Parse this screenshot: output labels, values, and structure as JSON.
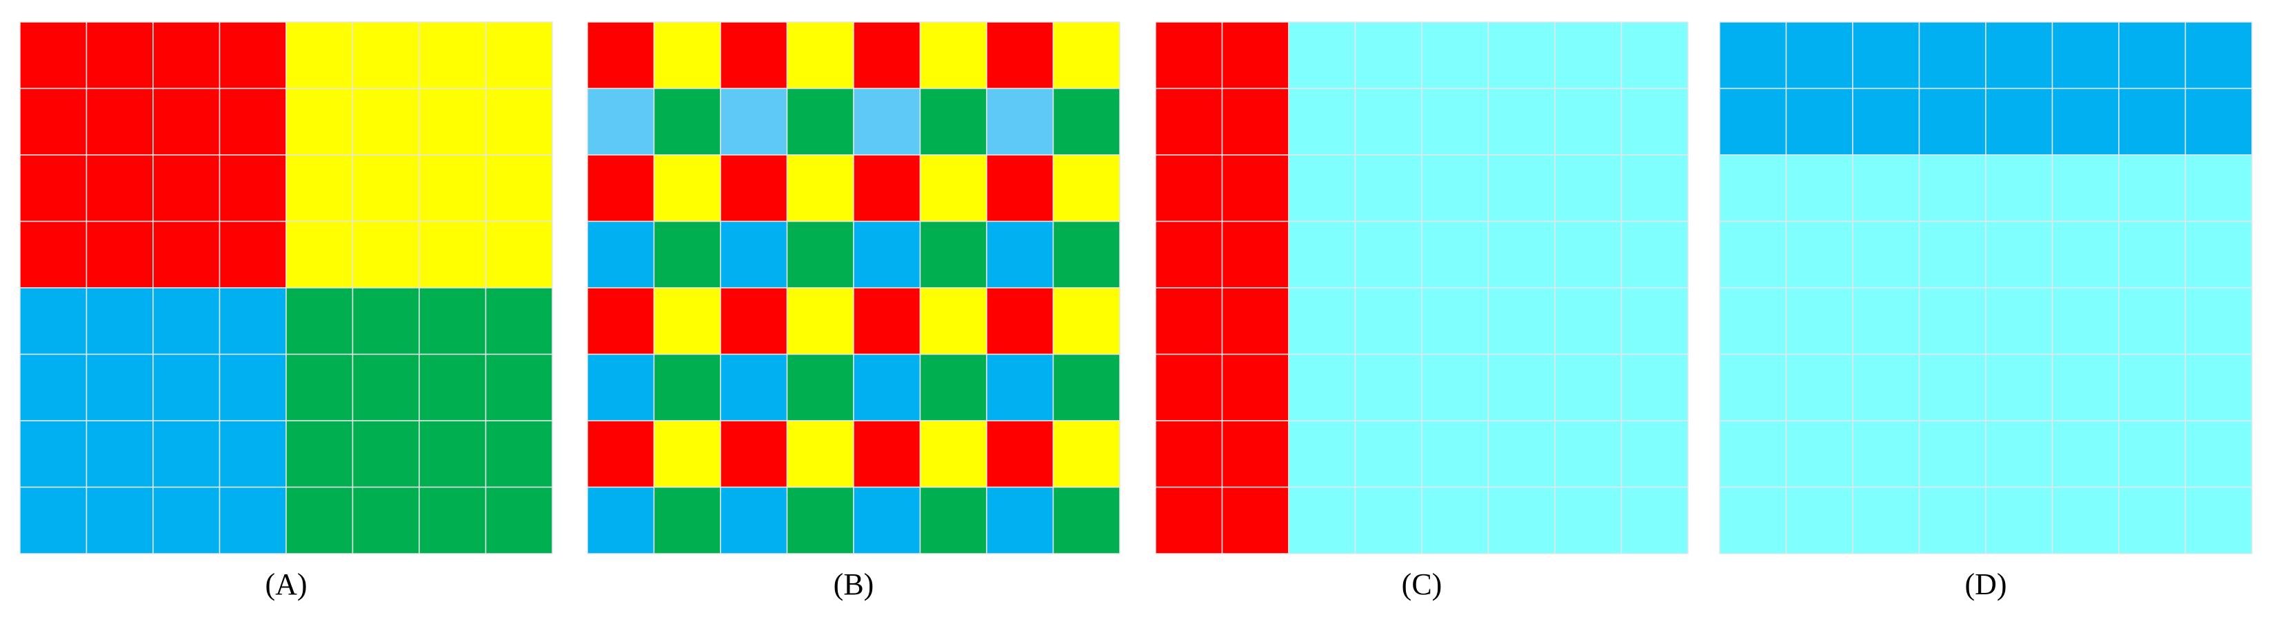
{
  "panels": [
    {
      "label": "(A)",
      "cells": [
        [
          "#ff0000",
          "#ff0000",
          "#ff0000",
          "#ff0000",
          "#ffff00",
          "#ffff00",
          "#ffff00",
          "#ffff00"
        ],
        [
          "#ff0000",
          "#ff0000",
          "#ff0000",
          "#ff0000",
          "#ffff00",
          "#ffff00",
          "#ffff00",
          "#ffff00"
        ],
        [
          "#ff0000",
          "#ff0000",
          "#ff0000",
          "#ff0000",
          "#ffff00",
          "#ffff00",
          "#ffff00",
          "#ffff00"
        ],
        [
          "#ff0000",
          "#ff0000",
          "#ff0000",
          "#ff0000",
          "#ffff00",
          "#ffff00",
          "#ffff00",
          "#ffff00"
        ],
        [
          "#00b0f0",
          "#00b0f0",
          "#00b0f0",
          "#00b0f0",
          "#00b050",
          "#00b050",
          "#00b050",
          "#00b050"
        ],
        [
          "#00b0f0",
          "#00b0f0",
          "#00b0f0",
          "#00b0f0",
          "#00b050",
          "#00b050",
          "#00b050",
          "#00b050"
        ],
        [
          "#00b0f0",
          "#00b0f0",
          "#00b0f0",
          "#00b0f0",
          "#00b050",
          "#00b050",
          "#00b050",
          "#00b050"
        ],
        [
          "#00b0f0",
          "#00b0f0",
          "#00b0f0",
          "#00b0f0",
          "#00b050",
          "#00b050",
          "#00b050",
          "#00b050"
        ]
      ]
    },
    {
      "label": "(B)",
      "cells": [
        [
          "#ff0000",
          "#ffff00",
          "#ff0000",
          "#ffff00",
          "#ff0000",
          "#ffff00",
          "#ff0000",
          "#ffff00"
        ],
        [
          "#5ec9f5",
          "#00b050",
          "#5ec9f5",
          "#00b050",
          "#5ec9f5",
          "#00b050",
          "#5ec9f5",
          "#00b050"
        ],
        [
          "#ff0000",
          "#ffff00",
          "#ff0000",
          "#ffff00",
          "#ff0000",
          "#ffff00",
          "#ff0000",
          "#ffff00"
        ],
        [
          "#00b0f0",
          "#00b050",
          "#00b0f0",
          "#00b050",
          "#00b0f0",
          "#00b050",
          "#00b0f0",
          "#00b050"
        ],
        [
          "#ff0000",
          "#ffff00",
          "#ff0000",
          "#ffff00",
          "#ff0000",
          "#ffff00",
          "#ff0000",
          "#ffff00"
        ],
        [
          "#00b0f0",
          "#00b050",
          "#00b0f0",
          "#00b050",
          "#00b0f0",
          "#00b050",
          "#00b0f0",
          "#00b050"
        ],
        [
          "#ff0000",
          "#ffff00",
          "#ff0000",
          "#ffff00",
          "#ff0000",
          "#ffff00",
          "#ff0000",
          "#ffff00"
        ],
        [
          "#00b0f0",
          "#00b050",
          "#00b0f0",
          "#00b050",
          "#00b0f0",
          "#00b050",
          "#00b0f0",
          "#00b050"
        ]
      ]
    },
    {
      "label": "(C)",
      "cells": [
        [
          "#ff0000",
          "#ff0000",
          "#80ffff",
          "#80ffff",
          "#80ffff",
          "#80ffff",
          "#80ffff",
          "#80ffff"
        ],
        [
          "#ff0000",
          "#ff0000",
          "#80ffff",
          "#80ffff",
          "#80ffff",
          "#80ffff",
          "#80ffff",
          "#80ffff"
        ],
        [
          "#ff0000",
          "#ff0000",
          "#80ffff",
          "#80ffff",
          "#80ffff",
          "#80ffff",
          "#80ffff",
          "#80ffff"
        ],
        [
          "#ff0000",
          "#ff0000",
          "#80ffff",
          "#80ffff",
          "#80ffff",
          "#80ffff",
          "#80ffff",
          "#80ffff"
        ],
        [
          "#ff0000",
          "#ff0000",
          "#80ffff",
          "#80ffff",
          "#80ffff",
          "#80ffff",
          "#80ffff",
          "#80ffff"
        ],
        [
          "#ff0000",
          "#ff0000",
          "#80ffff",
          "#80ffff",
          "#80ffff",
          "#80ffff",
          "#80ffff",
          "#80ffff"
        ],
        [
          "#ff0000",
          "#ff0000",
          "#80ffff",
          "#80ffff",
          "#80ffff",
          "#80ffff",
          "#80ffff",
          "#80ffff"
        ],
        [
          "#ff0000",
          "#ff0000",
          "#80ffff",
          "#80ffff",
          "#80ffff",
          "#80ffff",
          "#80ffff",
          "#80ffff"
        ]
      ]
    },
    {
      "label": "(D)",
      "cells": [
        [
          "#00b0f0",
          "#00b0f0",
          "#00b0f0",
          "#00b0f0",
          "#00b0f0",
          "#00b0f0",
          "#00b0f0",
          "#00b0f0"
        ],
        [
          "#00b0f0",
          "#00b0f0",
          "#00b0f0",
          "#00b0f0",
          "#00b0f0",
          "#00b0f0",
          "#00b0f0",
          "#00b0f0"
        ],
        [
          "#80ffff",
          "#80ffff",
          "#80ffff",
          "#80ffff",
          "#80ffff",
          "#80ffff",
          "#80ffff",
          "#80ffff"
        ],
        [
          "#80ffff",
          "#80ffff",
          "#80ffff",
          "#80ffff",
          "#80ffff",
          "#80ffff",
          "#80ffff",
          "#80ffff"
        ],
        [
          "#80ffff",
          "#80ffff",
          "#80ffff",
          "#80ffff",
          "#80ffff",
          "#80ffff",
          "#80ffff",
          "#80ffff"
        ],
        [
          "#80ffff",
          "#80ffff",
          "#80ffff",
          "#80ffff",
          "#80ffff",
          "#80ffff",
          "#80ffff",
          "#80ffff"
        ],
        [
          "#80ffff",
          "#80ffff",
          "#80ffff",
          "#80ffff",
          "#80ffff",
          "#80ffff",
          "#80ffff",
          "#80ffff"
        ],
        [
          "#80ffff",
          "#80ffff",
          "#80ffff",
          "#80ffff",
          "#80ffff",
          "#80ffff",
          "#80ffff",
          "#80ffff"
        ]
      ]
    }
  ]
}
